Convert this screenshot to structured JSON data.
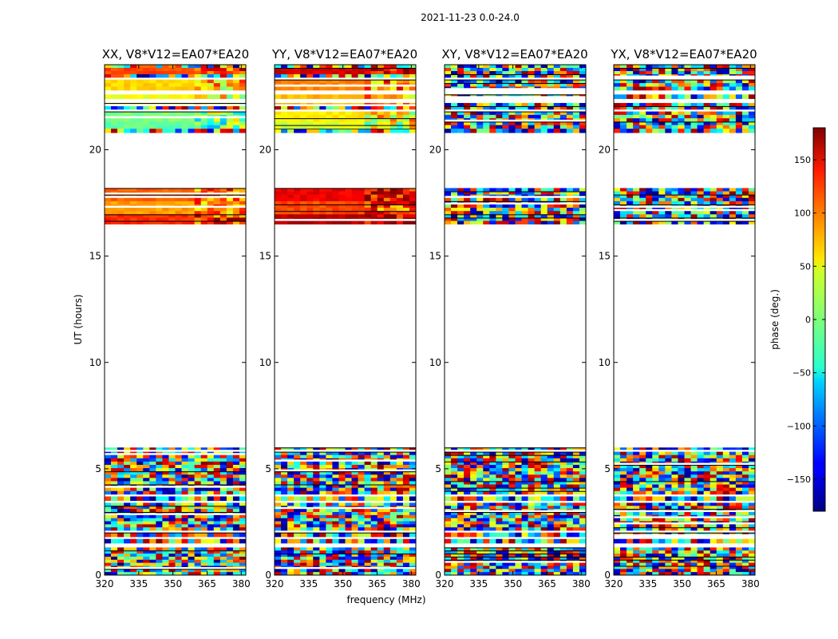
{
  "chart_data": {
    "type": "heatmap",
    "suptitle": "2021-11-23 0.0-24.0",
    "xlabel": "frequency (MHz)",
    "ylabel": "UT (hours)",
    "xlim": [
      320,
      382
    ],
    "ylim": [
      0,
      24
    ],
    "xticks": [
      320,
      335,
      350,
      365,
      380
    ],
    "yticks": [
      0,
      5,
      10,
      15,
      20
    ],
    "panels": [
      {
        "name": "XX",
        "title": "XX, V8*V12=EA07*EA20",
        "bands_phase": [
          {
            "t0": 16.5,
            "t1": 17.0,
            "phase": 120
          },
          {
            "t0": 17.0,
            "t1": 17.6,
            "phase": 80
          },
          {
            "t0": 17.6,
            "t1": 18.2,
            "phase": 100
          },
          {
            "t0": 21.0,
            "t1": 21.4,
            "phase": -10
          },
          {
            "t0": 21.4,
            "t1": 21.8,
            "phase": 0
          },
          {
            "t0": 22.0,
            "t1": 22.6,
            "phase": 40
          },
          {
            "t0": 22.8,
            "t1": 23.3,
            "phase": 60
          },
          {
            "t0": 23.5,
            "t1": 23.9,
            "phase": 110
          }
        ]
      },
      {
        "name": "YY",
        "title": "YY, V8*V12=EA07*EA20",
        "bands_phase": [
          {
            "t0": 16.5,
            "t1": 17.0,
            "phase": 160
          },
          {
            "t0": 17.0,
            "t1": 17.6,
            "phase": 110
          },
          {
            "t0": 17.6,
            "t1": 18.2,
            "phase": 140
          },
          {
            "t0": 21.0,
            "t1": 21.4,
            "phase": 30
          },
          {
            "t0": 21.4,
            "t1": 21.8,
            "phase": 50
          },
          {
            "t0": 22.0,
            "t1": 22.6,
            "phase": 70
          },
          {
            "t0": 22.8,
            "t1": 23.3,
            "phase": 90
          },
          {
            "t0": 23.5,
            "t1": 23.9,
            "phase": 150
          }
        ]
      },
      {
        "name": "XY",
        "title": "XY, V8*V12=EA07*EA20",
        "bands_phase": []
      },
      {
        "name": "YX",
        "title": "YX, V8*V12=EA07*EA20",
        "bands_phase": []
      }
    ],
    "data_blocks_hours": [
      [
        0.0,
        1.3
      ],
      [
        1.5,
        1.7
      ],
      [
        1.8,
        2.0
      ],
      [
        2.1,
        3.4
      ],
      [
        3.5,
        3.7
      ],
      [
        3.8,
        5.8
      ],
      [
        5.9,
        6.0
      ],
      [
        16.5,
        18.2
      ],
      [
        20.8,
        21.0
      ],
      [
        21.0,
        21.8
      ],
      [
        21.9,
        22.2
      ],
      [
        22.4,
        22.6
      ],
      [
        22.8,
        23.3
      ],
      [
        23.4,
        24.0
      ]
    ],
    "colorbar": {
      "label": "phase (deg.)",
      "range": [
        -180,
        180
      ],
      "ticks": [
        150,
        100,
        50,
        0,
        -50,
        -100,
        -150
      ],
      "tick_labels": [
        "150",
        "100",
        "50",
        "0",
        "−50",
        "−100",
        "−150"
      ],
      "colormap": "jet"
    }
  }
}
